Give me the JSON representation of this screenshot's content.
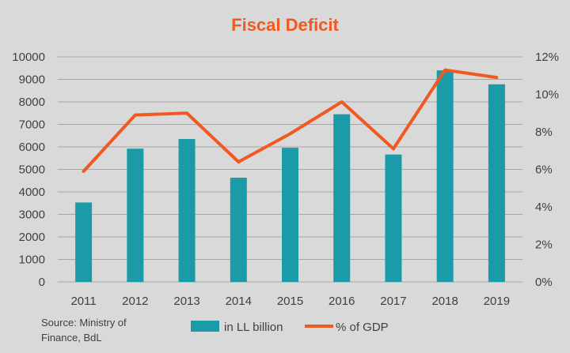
{
  "chart_data": {
    "type": "bar",
    "title": "Fiscal Deficit",
    "categories": [
      "2011",
      "2012",
      "2013",
      "2014",
      "2015",
      "2016",
      "2017",
      "2018",
      "2019"
    ],
    "series": [
      {
        "name": "in LL billion",
        "type": "bar",
        "axis": "left",
        "color": "#1a9ba7",
        "values": [
          3530,
          5920,
          6350,
          4630,
          5960,
          7450,
          5660,
          9400,
          8780
        ]
      },
      {
        "name": "% of GDP",
        "type": "line",
        "axis": "right",
        "color": "#f05a22",
        "values": [
          5.9,
          8.9,
          9.0,
          6.4,
          7.9,
          9.6,
          7.1,
          11.3,
          10.9
        ]
      }
    ],
    "y_left": {
      "ylim": [
        0,
        10000
      ],
      "ticks": [
        "0",
        "1000",
        "2000",
        "3000",
        "4000",
        "5000",
        "6000",
        "7000",
        "8000",
        "9000",
        "10000"
      ]
    },
    "y_right": {
      "ylim": [
        0,
        12
      ],
      "ticks": [
        "0%",
        "2%",
        "4%",
        "6%",
        "8%",
        "10%",
        "12%"
      ]
    },
    "grid": true,
    "legend_position": "bottom"
  },
  "source_note": [
    "Source: Ministry of",
    "Finance, BdL"
  ],
  "colors": {
    "background": "#d9d9d9",
    "title": "#f05a22",
    "grid": "#a6a6a6",
    "text": "#404040"
  }
}
